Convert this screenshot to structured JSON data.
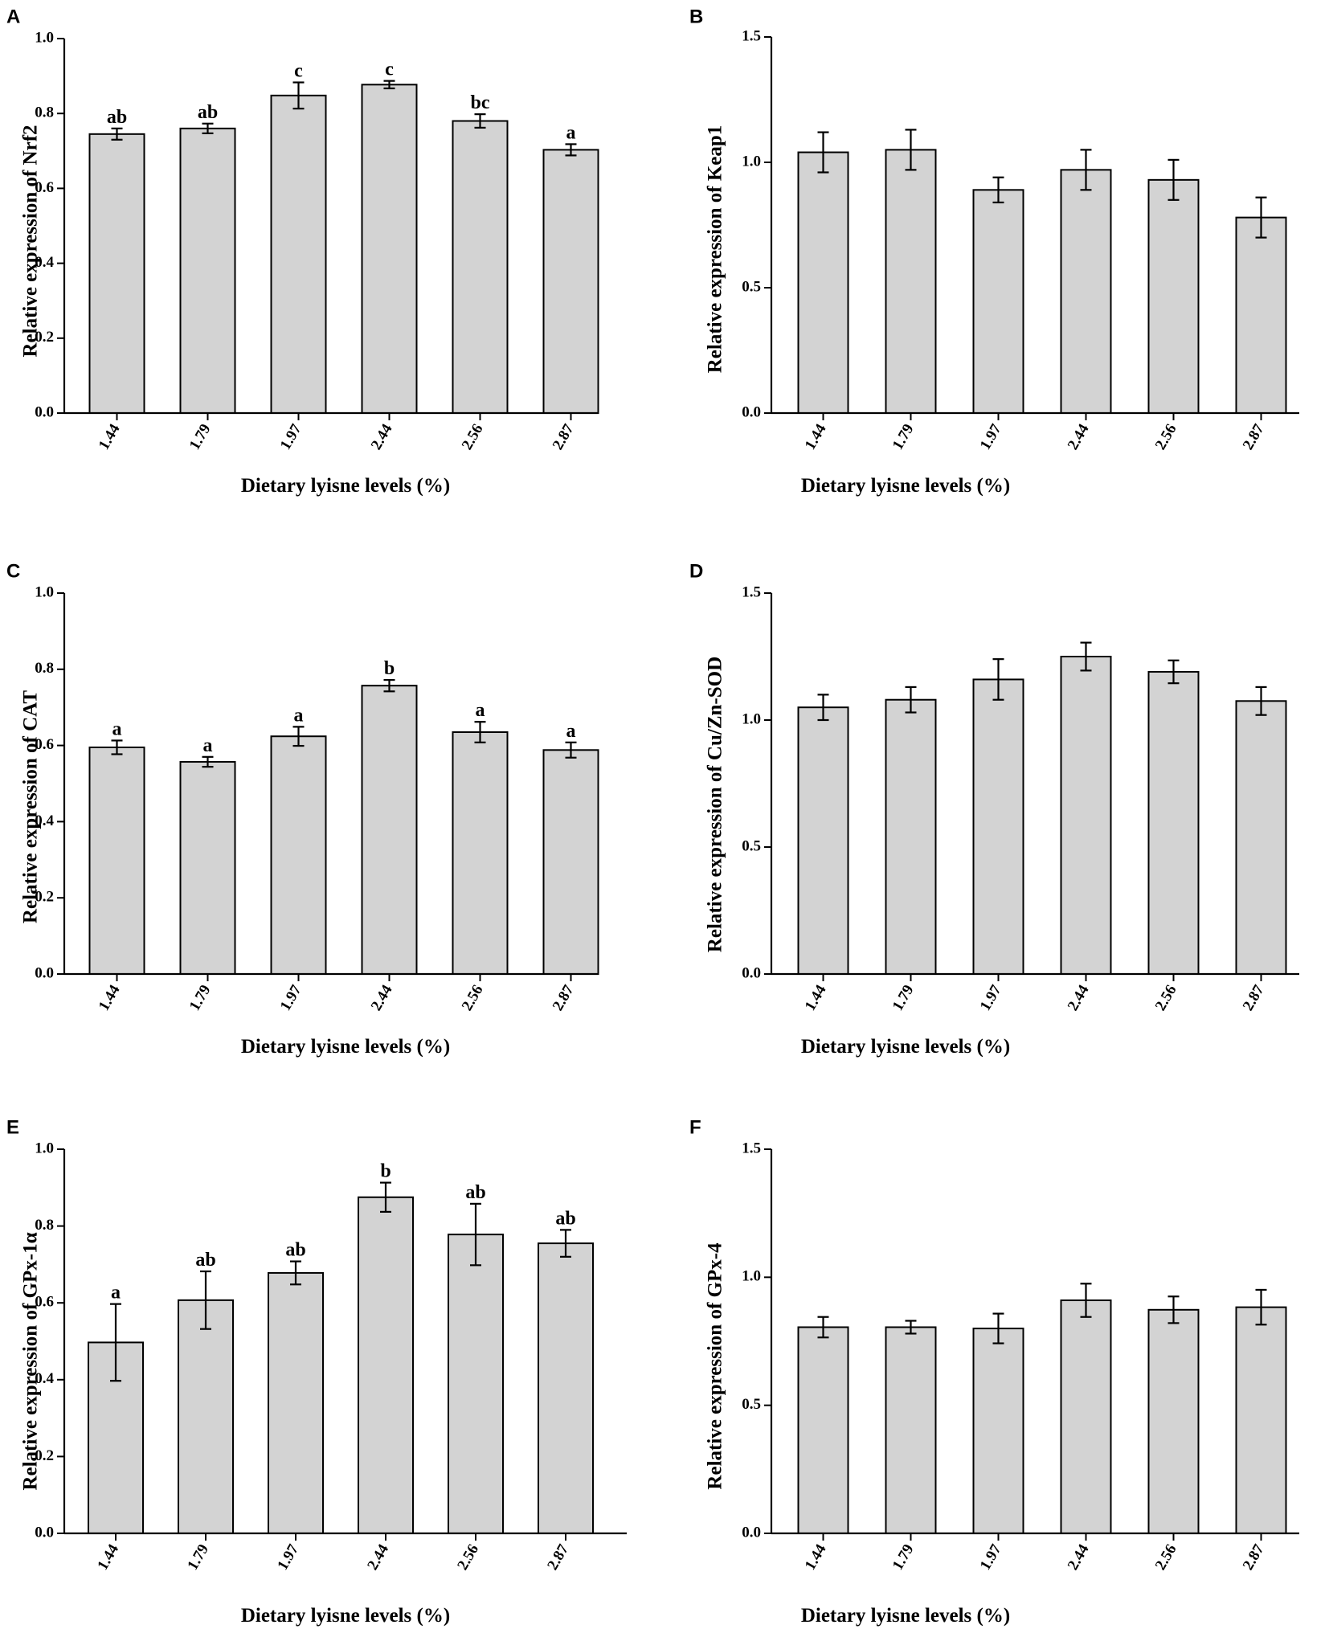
{
  "figure": {
    "colors": {
      "bar_fill": "#d3d3d3",
      "stroke": "#000000",
      "background": "#ffffff"
    }
  },
  "chart_data": [
    {
      "panel": "A",
      "type": "bar",
      "categories": [
        "1.44",
        "1.79",
        "1.97",
        "2.44",
        "2.56",
        "2.87"
      ],
      "values": [
        0.745,
        0.76,
        0.848,
        0.877,
        0.78,
        0.703
      ],
      "errors": [
        0.015,
        0.013,
        0.035,
        0.01,
        0.018,
        0.015
      ],
      "labels": [
        "ab",
        "ab",
        "c",
        "c",
        "bc",
        "a"
      ],
      "ylim": [
        0,
        1.0
      ],
      "yticks": [
        "0.0",
        "0.2",
        "0.4",
        "0.6",
        "0.8",
        "1.0"
      ],
      "ylabel": "Relative expression of Nrf2",
      "xlabel": "Dietary lyisne levels (%)"
    },
    {
      "panel": "B",
      "type": "bar",
      "categories": [
        "1.44",
        "1.79",
        "1.97",
        "2.44",
        "2.56",
        "2.87"
      ],
      "values": [
        1.04,
        1.05,
        0.89,
        0.97,
        0.93,
        0.78
      ],
      "errors": [
        0.08,
        0.08,
        0.05,
        0.08,
        0.08,
        0.08
      ],
      "labels": [],
      "ylim": [
        0,
        1.5
      ],
      "yticks": [
        "0.0",
        "0.5",
        "1.0",
        "1.5"
      ],
      "ylabel": "Relative expression of Keap1",
      "xlabel": "Dietary lyisne levels (%)"
    },
    {
      "panel": "C",
      "type": "bar",
      "categories": [
        "1.44",
        "1.79",
        "1.97",
        "2.44",
        "2.56",
        "2.87"
      ],
      "values": [
        0.595,
        0.557,
        0.624,
        0.757,
        0.635,
        0.588
      ],
      "errors": [
        0.018,
        0.013,
        0.025,
        0.015,
        0.027,
        0.02
      ],
      "labels": [
        "a",
        "a",
        "a",
        "b",
        "a",
        "a"
      ],
      "ylim": [
        0,
        1.0
      ],
      "yticks": [
        "0.0",
        "0.2",
        "0.4",
        "0.6",
        "0.8",
        "1.0"
      ],
      "ylabel": "Relative expression of CAT",
      "xlabel": "Dietary lyisne levels (%)"
    },
    {
      "panel": "D",
      "type": "bar",
      "categories": [
        "1.44",
        "1.79",
        "1.97",
        "2.44",
        "2.56",
        "2.87"
      ],
      "values": [
        1.05,
        1.08,
        1.16,
        1.25,
        1.19,
        1.075
      ],
      "errors": [
        0.05,
        0.05,
        0.08,
        0.055,
        0.045,
        0.055
      ],
      "labels": [],
      "ylim": [
        0,
        1.5
      ],
      "yticks": [
        "0.0",
        "0.5",
        "1.0",
        "1.5"
      ],
      "ylabel": "Relative expression of Cu/Zn-SOD",
      "xlabel": "Dietary lyisne levels (%)"
    },
    {
      "panel": "E",
      "type": "bar",
      "categories": [
        "1.44",
        "1.79",
        "1.97",
        "2.44",
        "2.56",
        "2.87"
      ],
      "values": [
        0.497,
        0.607,
        0.678,
        0.875,
        0.778,
        0.755
      ],
      "errors": [
        0.1,
        0.075,
        0.03,
        0.038,
        0.08,
        0.035
      ],
      "labels": [
        "a",
        "ab",
        "ab",
        "b",
        "ab",
        "ab"
      ],
      "ylim": [
        0,
        1.0
      ],
      "yticks": [
        "0.0",
        "0.2",
        "0.4",
        "0.6",
        "0.8",
        "1.0"
      ],
      "ylabel": "Relative expression of GPx-1α",
      "xlabel": "Dietary lyisne levels (%)"
    },
    {
      "panel": "F",
      "type": "bar",
      "categories": [
        "1.44",
        "1.79",
        "1.97",
        "2.44",
        "2.56",
        "2.87"
      ],
      "values": [
        0.805,
        0.805,
        0.8,
        0.91,
        0.873,
        0.883
      ],
      "errors": [
        0.04,
        0.025,
        0.058,
        0.065,
        0.052,
        0.068
      ],
      "labels": [],
      "ylim": [
        0,
        1.5
      ],
      "yticks": [
        "0.0",
        "0.5",
        "1.0",
        "1.5"
      ],
      "ylabel": "Relative expression of GPx-4",
      "xlabel": "Dietary lyisne levels (%)"
    }
  ]
}
